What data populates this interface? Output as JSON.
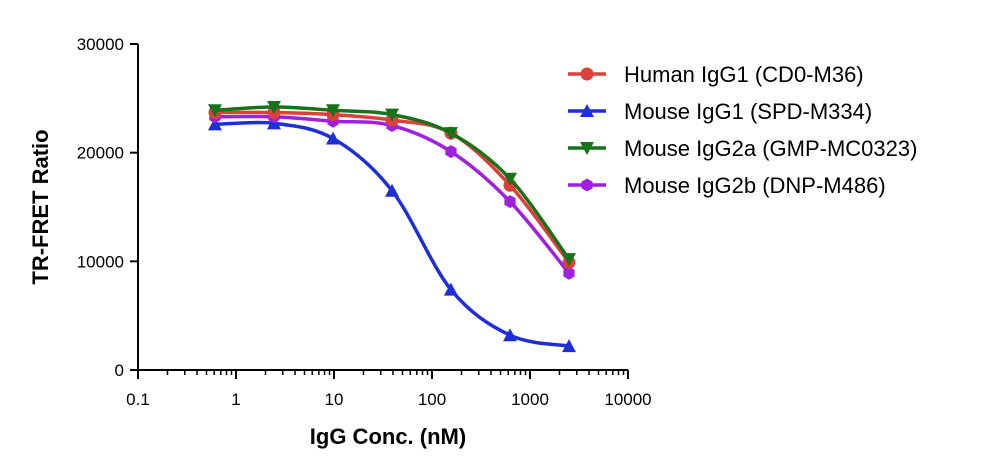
{
  "chart_data": {
    "type": "line",
    "title": "",
    "xlabel": "IgG Conc. (nM)",
    "ylabel": "TR-FRET Ratio",
    "xscale": "log",
    "xlim": [
      0.1,
      10000
    ],
    "ylim": [
      0,
      30000
    ],
    "xticks": [
      0.1,
      1,
      10,
      100,
      1000,
      10000
    ],
    "xtick_labels": [
      "0.1",
      "1",
      "10",
      "100",
      "1000",
      "10000"
    ],
    "yticks": [
      0,
      10000,
      20000,
      30000
    ],
    "ytick_labels": [
      "0",
      "10000",
      "20000",
      "30000"
    ],
    "grid": false,
    "legend_position": "top-right",
    "x": [
      0.61,
      2.44,
      9.77,
      39.1,
      156,
      625,
      2500
    ],
    "series": [
      {
        "name": "Human IgG1 (CD0-M36)",
        "color": "#d9413a",
        "marker": "circle",
        "values": [
          23700,
          23700,
          23500,
          23000,
          21800,
          17000,
          9900
        ]
      },
      {
        "name": "Mouse IgG1 (SPD-M334)",
        "color": "#1f2fd6",
        "marker": "triangle-up",
        "values": [
          22600,
          22700,
          21300,
          16500,
          7400,
          3200,
          2200
        ]
      },
      {
        "name": "Mouse IgG2a (GMP-MC0323)",
        "color": "#17731a",
        "marker": "triangle-down",
        "values": [
          23900,
          24200,
          23900,
          23500,
          21800,
          17600,
          10200
        ]
      },
      {
        "name": "Mouse IgG2b (DNP-M486)",
        "color": "#a020e0",
        "marker": "hexagon",
        "values": [
          23300,
          23300,
          22900,
          22500,
          20100,
          15500,
          8900
        ]
      }
    ]
  }
}
